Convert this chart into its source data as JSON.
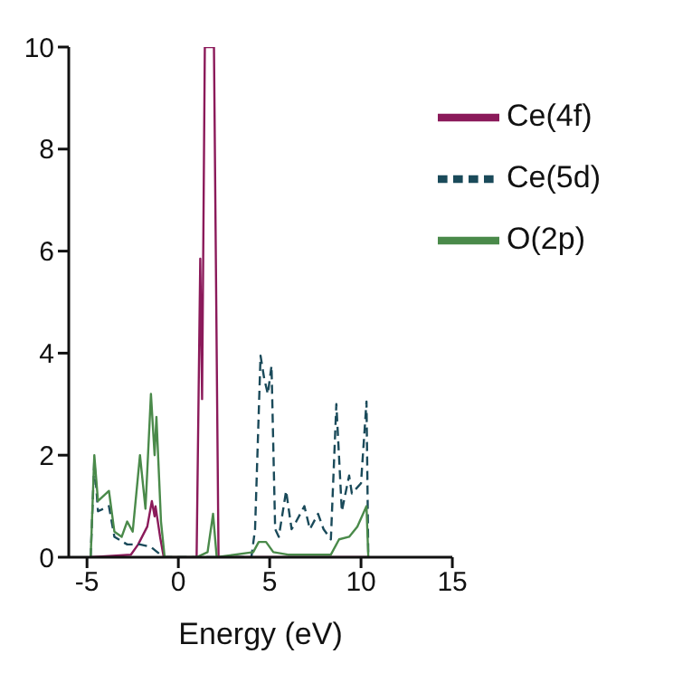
{
  "chart_data": {
    "type": "line",
    "xlabel": "Energy (eV)",
    "xlim": [
      -6,
      15
    ],
    "xticks": [
      -5,
      0,
      5,
      10,
      15
    ],
    "ylim": [
      0,
      10
    ],
    "yticks": [
      0,
      2,
      4,
      6,
      8,
      10
    ],
    "legend": "top right",
    "marker": "none",
    "series": [
      {
        "name": "Ce(4f)",
        "color": "#8b1a5a",
        "line_style": "solid",
        "x": [
          -4.8,
          -2.6,
          -2.2,
          -1.7,
          -1.45,
          -1.3,
          -1.25,
          -1.0,
          -0.8,
          1.0,
          1.2,
          1.3,
          1.45,
          1.95,
          2.2,
          4.5,
          10.4
        ],
        "values": [
          0,
          0.05,
          0.25,
          0.6,
          1.1,
          0.8,
          1.0,
          0.4,
          0,
          0,
          5.85,
          3.1,
          10,
          10,
          0,
          0,
          0
        ]
      },
      {
        "name": "Ce(5d)",
        "color": "#1a4a5a",
        "line_style": "dashed",
        "x": [
          -4.8,
          -4.6,
          -4.4,
          -3.8,
          -3.5,
          -2.8,
          -2.1,
          -1.5,
          -0.8,
          4.0,
          4.2,
          4.5,
          4.7,
          4.9,
          5.1,
          5.3,
          5.5,
          5.9,
          6.2,
          6.45,
          6.9,
          7.2,
          7.65,
          7.95,
          8.35,
          8.65,
          8.95,
          9.35,
          9.5,
          10.0,
          10.3,
          10.4
        ],
        "values": [
          0,
          1.9,
          0.9,
          1.0,
          0.4,
          0.25,
          0.25,
          0.2,
          0,
          0,
          0.55,
          3.95,
          3.5,
          3.2,
          3.75,
          0.55,
          0.4,
          1.3,
          0.55,
          0.7,
          1.0,
          0.55,
          0.85,
          0.55,
          0.35,
          3.0,
          0.9,
          1.6,
          1.25,
          1.45,
          3.05,
          0
        ]
      },
      {
        "name": "O(2p)",
        "color": "#4a8a4a",
        "line_style": "solid",
        "x": [
          -4.8,
          -4.6,
          -4.4,
          -3.8,
          -3.5,
          -3.1,
          -2.8,
          -2.5,
          -2.1,
          -1.8,
          -1.5,
          -1.3,
          -1.2,
          -0.95,
          -0.75,
          1.0,
          1.6,
          1.9,
          2.1,
          4.1,
          4.4,
          4.8,
          5.2,
          6.0,
          8.35,
          8.8,
          9.35,
          9.8,
          10.3,
          10.4
        ],
        "values": [
          0,
          2.0,
          1.1,
          1.3,
          0.5,
          0.4,
          0.7,
          0.5,
          2.0,
          0.95,
          3.2,
          2.0,
          2.75,
          0.7,
          0,
          0,
          0.1,
          0.85,
          0,
          0.1,
          0.3,
          0.3,
          0.1,
          0.05,
          0.05,
          0.35,
          0.4,
          0.6,
          1.0,
          0
        ]
      }
    ]
  }
}
